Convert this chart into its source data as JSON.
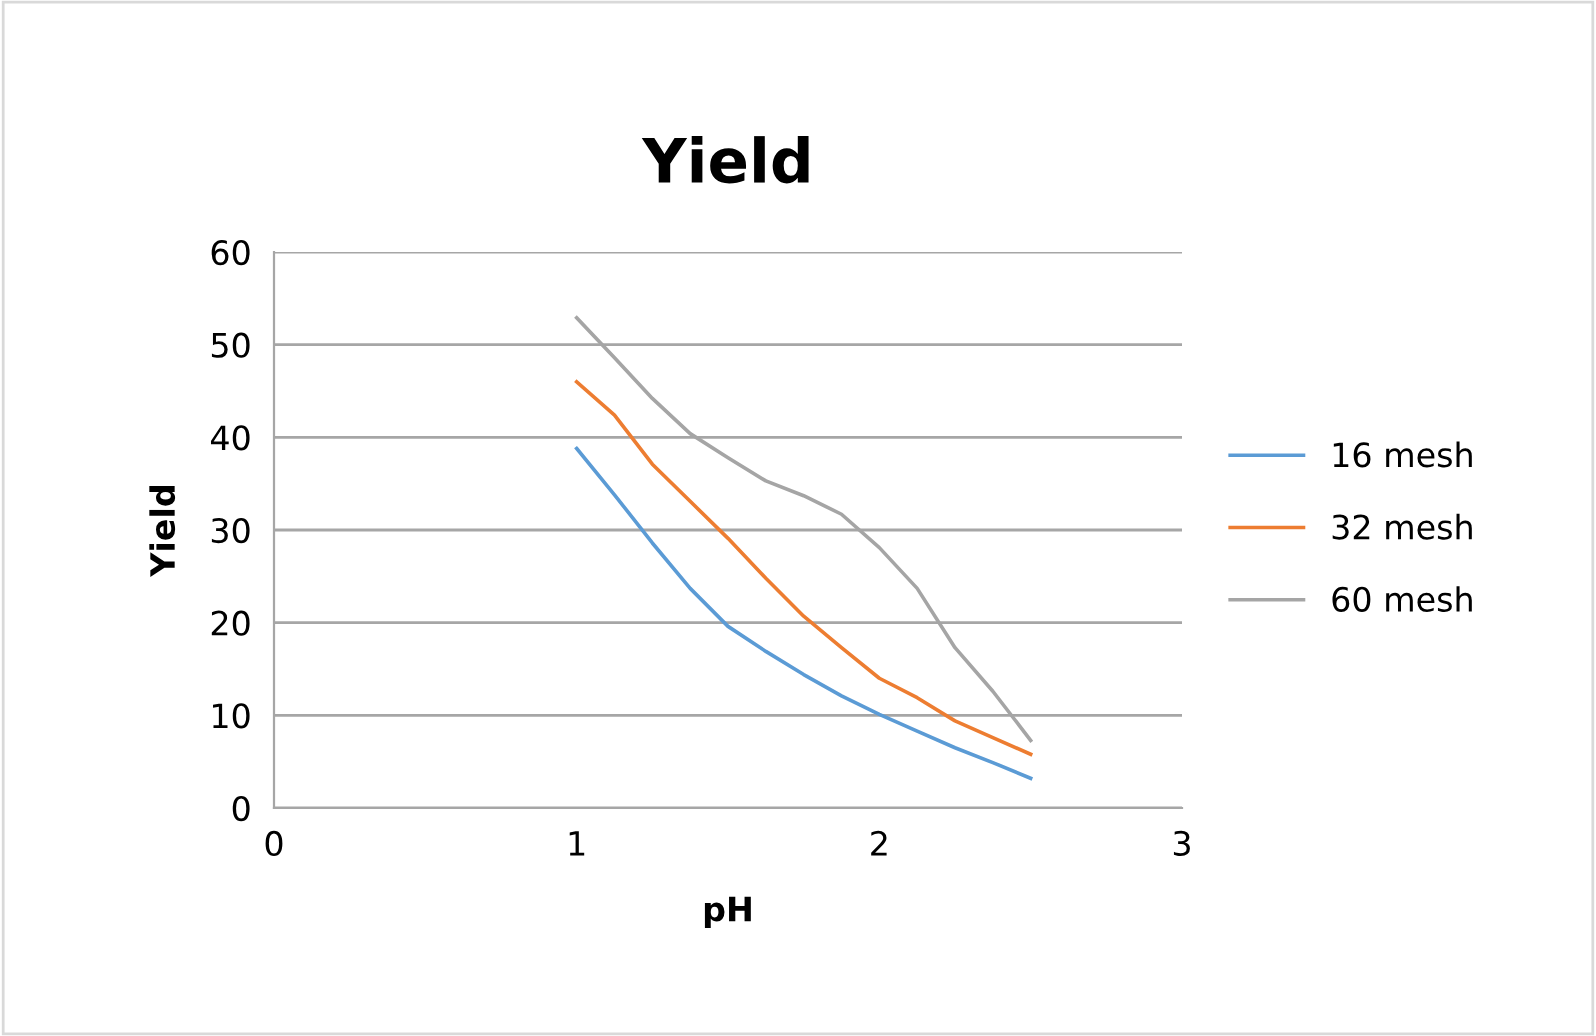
{
  "chart_data": {
    "type": "line",
    "title": "Yield",
    "xlabel": "pH",
    "ylabel": "Yield",
    "xlim": [
      0,
      3
    ],
    "xticks": [
      0,
      1,
      2,
      3
    ],
    "ylim": [
      0,
      60
    ],
    "yticks": [
      0,
      10,
      20,
      30,
      40,
      50,
      60
    ],
    "grid": "y",
    "legend": "right",
    "marker": "none",
    "line_style": "solid",
    "series": [
      {
        "name": "16 mesh",
        "color": "#5b9bd5",
        "x": [
          1,
          1.125,
          1.25,
          1.375,
          1.5,
          1.625,
          1.75,
          1.875,
          2,
          2.125,
          2.25,
          2.375,
          2.5
        ],
        "values": [
          38.8,
          33.8,
          28.6,
          23.7,
          19.6,
          16.9,
          14.4,
          12.1,
          10.1,
          8.3,
          6.5,
          4.9,
          3.2
        ]
      },
      {
        "name": "32 mesh",
        "color": "#ed7d31",
        "x": [
          1,
          1.125,
          1.25,
          1.375,
          1.5,
          1.625,
          1.75,
          1.875,
          2,
          2.125,
          2.25,
          2.375,
          2.5
        ],
        "values": [
          46,
          42.4,
          37.1,
          33.1,
          29.1,
          24.8,
          20.7,
          17.3,
          14,
          11.9,
          9.4,
          7.6,
          5.8
        ]
      },
      {
        "name": "60 mesh",
        "color": "#a5a5a5",
        "x": [
          1,
          1.125,
          1.25,
          1.375,
          1.5,
          1.625,
          1.75,
          1.875,
          2,
          2.125,
          2.25,
          2.375,
          2.5
        ],
        "values": [
          52.9,
          48.6,
          44.2,
          40.4,
          37.8,
          35.3,
          33.7,
          31.7,
          28.1,
          23.7,
          17.3,
          12.6,
          7.3
        ]
      }
    ]
  }
}
